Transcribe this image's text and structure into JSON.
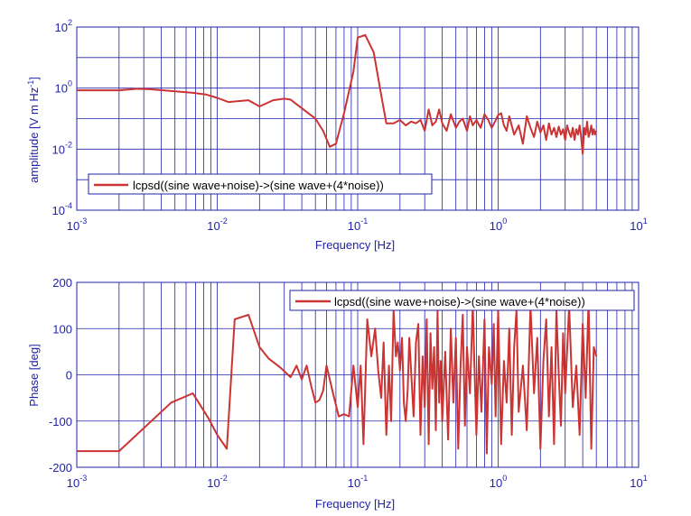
{
  "figure": {
    "bg": "#ffffff",
    "axis_color": "#2222aa",
    "line_color": "#cc3333"
  },
  "chart_data": [
    {
      "type": "line",
      "xscale": "log",
      "yscale": "log",
      "xlim": [
        0.001,
        10
      ],
      "ylim": [
        0.0001,
        100
      ],
      "grid": true,
      "xlabel": "Frequency  [Hz]",
      "ylabel": "amplitude  [V m Hz",
      "ylabel_sup": "-1",
      "ylabel_close": "]",
      "xticks": [
        {
          "base": "10",
          "exp": "-3",
          "value": 0.001
        },
        {
          "base": "10",
          "exp": "-2",
          "value": 0.01
        },
        {
          "base": "10",
          "exp": "-1",
          "value": 0.1
        },
        {
          "base": "10",
          "exp": "0",
          "value": 1
        },
        {
          "base": "10",
          "exp": "1",
          "value": 10
        }
      ],
      "yticks": [
        {
          "base": "10",
          "exp": "-4",
          "value": 0.0001
        },
        {
          "base": "10",
          "exp": "-2",
          "value": 0.01
        },
        {
          "base": "10",
          "exp": "0",
          "value": 1
        },
        {
          "base": "10",
          "exp": "2",
          "value": 100
        }
      ],
      "legend": {
        "label": "lcpsd((sine wave+noise)->(sine wave+(4*noise))",
        "position": "bottom-left"
      },
      "series": [
        {
          "name": "lcpsd((sine wave+noise)->(sine wave+(4*noise))",
          "x": [
            0.001,
            0.002,
            0.0027,
            0.0033,
            0.0047,
            0.0067,
            0.0083,
            0.01,
            0.012,
            0.0167,
            0.02,
            0.025,
            0.03,
            0.0333,
            0.04,
            0.05,
            0.0567,
            0.0633,
            0.07,
            0.08,
            0.0933,
            0.1,
            0.113,
            0.13,
            0.147,
            0.16,
            0.18,
            0.2,
            0.22,
            0.24,
            0.26,
            0.28,
            0.3,
            0.32,
            0.34,
            0.36,
            0.38,
            0.4,
            0.43,
            0.46,
            0.5,
            0.53,
            0.56,
            0.6,
            0.63,
            0.66,
            0.7,
            0.75,
            0.8,
            0.85,
            0.9,
            0.95,
            1.0,
            1.05,
            1.1,
            1.15,
            1.2,
            1.3,
            1.4,
            1.5,
            1.6,
            1.7,
            1.8,
            1.9,
            2.0,
            2.1,
            2.2,
            2.3,
            2.4,
            2.5,
            2.6,
            2.7,
            2.8,
            2.9,
            3.0,
            3.1,
            3.2,
            3.3,
            3.4,
            3.5,
            3.6,
            3.7,
            3.8,
            3.9,
            4.0,
            4.1,
            4.2,
            4.3,
            4.4,
            4.5,
            4.6,
            4.7,
            4.8,
            4.9,
            5.0
          ],
          "y": [
            0.85,
            0.85,
            0.95,
            0.92,
            0.8,
            0.7,
            0.62,
            0.48,
            0.35,
            0.4,
            0.25,
            0.4,
            0.45,
            0.42,
            0.22,
            0.1,
            0.04,
            0.012,
            0.015,
            0.15,
            3.5,
            45,
            55,
            15,
            0.6,
            0.07,
            0.07,
            0.09,
            0.06,
            0.08,
            0.07,
            0.09,
            0.04,
            0.2,
            0.06,
            0.08,
            0.2,
            0.07,
            0.04,
            0.14,
            0.05,
            0.08,
            0.1,
            0.04,
            0.12,
            0.06,
            0.09,
            0.05,
            0.14,
            0.09,
            0.05,
            0.08,
            0.13,
            0.15,
            0.06,
            0.04,
            0.12,
            0.03,
            0.06,
            0.015,
            0.12,
            0.05,
            0.025,
            0.08,
            0.035,
            0.06,
            0.02,
            0.07,
            0.03,
            0.05,
            0.025,
            0.055,
            0.03,
            0.045,
            0.02,
            0.06,
            0.035,
            0.025,
            0.05,
            0.02,
            0.045,
            0.03,
            0.06,
            0.025,
            0.007,
            0.05,
            0.03,
            0.08,
            0.025,
            0.035,
            0.06,
            0.03,
            0.045,
            0.03,
            0.04
          ]
        }
      ]
    },
    {
      "type": "line",
      "xscale": "log",
      "yscale": "linear",
      "xlim": [
        0.001,
        10
      ],
      "ylim": [
        -200,
        200
      ],
      "grid": true,
      "xlabel": "Frequency  [Hz]",
      "ylabel": "Phase [deg]",
      "xticks": [
        {
          "base": "10",
          "exp": "-3",
          "value": 0.001
        },
        {
          "base": "10",
          "exp": "-2",
          "value": 0.01
        },
        {
          "base": "10",
          "exp": "-1",
          "value": 0.1
        },
        {
          "base": "10",
          "exp": "0",
          "value": 1
        },
        {
          "base": "10",
          "exp": "1",
          "value": 10
        }
      ],
      "yticks": [
        {
          "label": "-200",
          "value": -200
        },
        {
          "label": "-100",
          "value": -100
        },
        {
          "label": "0",
          "value": 0
        },
        {
          "label": "100",
          "value": 100
        },
        {
          "label": "200",
          "value": 200
        }
      ],
      "legend": {
        "label": "lcpsd((sine wave+noise)->(sine wave+(4*noise))",
        "position": "top-right"
      },
      "series": [
        {
          "name": "lcpsd((sine wave+noise)->(sine wave+(4*noise))",
          "x": [
            0.001,
            0.002,
            0.0047,
            0.0067,
            0.0087,
            0.01,
            0.0117,
            0.0133,
            0.0167,
            0.02,
            0.0233,
            0.0283,
            0.0333,
            0.0367,
            0.04,
            0.0433,
            0.0467,
            0.05,
            0.0533,
            0.0567,
            0.06,
            0.0667,
            0.0733,
            0.08,
            0.0867,
            0.0933,
            0.1,
            0.105,
            0.11,
            0.117,
            0.125,
            0.133,
            0.14,
            0.147,
            0.153,
            0.16,
            0.167,
            0.173,
            0.18,
            0.187,
            0.193,
            0.2,
            0.207,
            0.213,
            0.22,
            0.227,
            0.233,
            0.24,
            0.25,
            0.26,
            0.27,
            0.28,
            0.29,
            0.3,
            0.31,
            0.32,
            0.33,
            0.34,
            0.35,
            0.36,
            0.37,
            0.38,
            0.39,
            0.4,
            0.42,
            0.44,
            0.46,
            0.48,
            0.5,
            0.52,
            0.54,
            0.56,
            0.58,
            0.6,
            0.63,
            0.66,
            0.7,
            0.73,
            0.76,
            0.8,
            0.83,
            0.86,
            0.9,
            0.93,
            0.96,
            1.0,
            1.05,
            1.1,
            1.15,
            1.2,
            1.25,
            1.3,
            1.35,
            1.4,
            1.5,
            1.6,
            1.7,
            1.8,
            1.9,
            2.0,
            2.1,
            2.2,
            2.3,
            2.4,
            2.5,
            2.6,
            2.7,
            2.8,
            2.9,
            3.0,
            3.2,
            3.4,
            3.6,
            3.8,
            4.0,
            4.2,
            4.4,
            4.6,
            4.8,
            5.0
          ],
          "y": [
            -165,
            -165,
            -60,
            -40,
            -95,
            -130,
            -160,
            120,
            130,
            60,
            35,
            15,
            -5,
            20,
            -10,
            20,
            -25,
            -60,
            -55,
            -35,
            20,
            -40,
            -90,
            -85,
            -90,
            20,
            -70,
            20,
            -150,
            120,
            40,
            100,
            10,
            -50,
            70,
            -130,
            20,
            -100,
            140,
            40,
            70,
            10,
            80,
            -60,
            -100,
            -30,
            80,
            10,
            -90,
            70,
            110,
            -130,
            40,
            -70,
            120,
            -150,
            90,
            -30,
            60,
            -120,
            140,
            -60,
            30,
            -100,
            50,
            -140,
            100,
            -60,
            80,
            -160,
            20,
            130,
            -110,
            60,
            -40,
            150,
            -130,
            40,
            -80,
            120,
            -170,
            60,
            -20,
            110,
            -90,
            140,
            -150,
            30,
            -60,
            100,
            -130,
            60,
            140,
            -80,
            20,
            -120,
            150,
            -40,
            80,
            -160,
            30,
            120,
            -90,
            60,
            -150,
            140,
            0,
            -110,
            90,
            -40,
            150,
            -70,
            20,
            -130,
            110,
            -50,
            160,
            -160,
            60,
            40
          ]
        }
      ]
    }
  ]
}
